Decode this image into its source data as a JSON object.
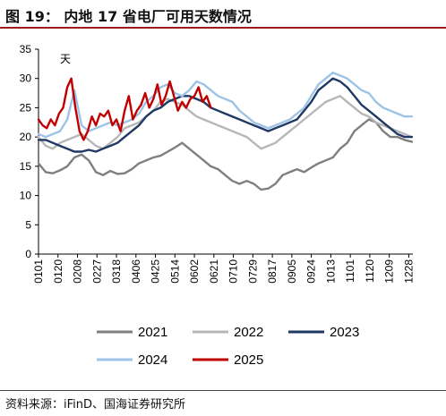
{
  "header": {
    "title": "图 19：   内地 17 省电厂可用天数情况"
  },
  "footer": {
    "source": "资料来源：iFinD、国海证券研究所"
  },
  "chart_data": {
    "type": "line",
    "unit_label": "天",
    "ylim": [
      0,
      35
    ],
    "yticks": [
      0,
      5,
      10,
      15,
      20,
      25,
      30,
      35
    ],
    "xlim": [
      0,
      365
    ],
    "x_ticks": [
      {
        "label": "0101",
        "day": 0
      },
      {
        "label": "0120",
        "day": 19
      },
      {
        "label": "0208",
        "day": 38
      },
      {
        "label": "0227",
        "day": 57
      },
      {
        "label": "0318",
        "day": 76
      },
      {
        "label": "0406",
        "day": 95
      },
      {
        "label": "0425",
        "day": 114
      },
      {
        "label": "0514",
        "day": 133
      },
      {
        "label": "0602",
        "day": 152
      },
      {
        "label": "0621",
        "day": 171
      },
      {
        "label": "0710",
        "day": 190
      },
      {
        "label": "0729",
        "day": 209
      },
      {
        "label": "0817",
        "day": 228
      },
      {
        "label": "0905",
        "day": 247
      },
      {
        "label": "0924",
        "day": 266
      },
      {
        "label": "1013",
        "day": 285
      },
      {
        "label": "1101",
        "day": 304
      },
      {
        "label": "1120",
        "day": 323
      },
      {
        "label": "1209",
        "day": 342
      },
      {
        "label": "1228",
        "day": 361
      }
    ],
    "grid": false,
    "legend_position": "bottom",
    "series": [
      {
        "name": "2021",
        "color": "#7f7f7f",
        "x": [
          0,
          7,
          14,
          21,
          28,
          35,
          42,
          49,
          56,
          63,
          70,
          77,
          84,
          91,
          98,
          105,
          112,
          119,
          126,
          133,
          140,
          147,
          154,
          161,
          168,
          175,
          182,
          189,
          196,
          203,
          210,
          217,
          224,
          231,
          238,
          245,
          252,
          259,
          266,
          273,
          280,
          287,
          294,
          301,
          308,
          315,
          322,
          329,
          336,
          343,
          350,
          357,
          364
        ],
        "y": [
          15.5,
          14.0,
          13.8,
          14.3,
          15.0,
          16.5,
          17.0,
          16.0,
          14.0,
          13.5,
          14.2,
          13.7,
          13.8,
          14.5,
          15.5,
          16.0,
          16.5,
          16.8,
          17.5,
          18.2,
          19.0,
          18.0,
          17.0,
          16.0,
          15.0,
          14.5,
          13.5,
          12.5,
          12.0,
          12.5,
          12.0,
          11.0,
          11.2,
          12.0,
          13.5,
          14.0,
          14.5,
          14.0,
          14.8,
          15.5,
          16.0,
          16.5,
          18.0,
          19.0,
          21.0,
          22.0,
          23.0,
          22.5,
          21.0,
          20.0,
          20.0,
          19.5,
          19.2
        ]
      },
      {
        "name": "2022",
        "color": "#b7b7b7",
        "x": [
          0,
          7,
          14,
          21,
          28,
          35,
          42,
          49,
          56,
          63,
          70,
          77,
          84,
          91,
          98,
          105,
          112,
          119,
          126,
          133,
          140,
          147,
          154,
          161,
          168,
          175,
          182,
          189,
          196,
          203,
          210,
          217,
          224,
          231,
          238,
          245,
          252,
          259,
          266,
          273,
          280,
          287,
          294,
          301,
          308,
          315,
          322,
          329,
          336,
          343,
          350,
          357,
          364
        ],
        "y": [
          20.0,
          18.5,
          18.0,
          19.0,
          19.5,
          20.0,
          20.5,
          19.5,
          18.5,
          18.0,
          19.0,
          20.0,
          21.5,
          22.0,
          22.5,
          23.5,
          24.5,
          26.0,
          26.5,
          26.0,
          25.5,
          24.5,
          23.5,
          23.0,
          22.5,
          22.0,
          21.5,
          21.0,
          20.5,
          20.0,
          19.0,
          18.0,
          18.5,
          19.0,
          20.0,
          21.0,
          22.0,
          23.0,
          24.0,
          25.0,
          26.0,
          26.5,
          27.0,
          26.0,
          25.0,
          24.0,
          23.5,
          22.5,
          22.0,
          21.5,
          21.0,
          20.5,
          20.0
        ]
      },
      {
        "name": "2023",
        "color": "#1f3864",
        "x": [
          0,
          7,
          14,
          21,
          28,
          35,
          42,
          49,
          56,
          63,
          70,
          77,
          84,
          91,
          98,
          105,
          112,
          119,
          126,
          133,
          140,
          147,
          154,
          161,
          168,
          175,
          182,
          189,
          196,
          203,
          210,
          217,
          224,
          231,
          238,
          245,
          252,
          259,
          266,
          273,
          280,
          287,
          294,
          301,
          308,
          315,
          322,
          329,
          336,
          343,
          350,
          357,
          364
        ],
        "y": [
          19.5,
          19.5,
          19.0,
          18.5,
          18.0,
          17.5,
          17.5,
          17.8,
          17.5,
          18.0,
          18.5,
          19.0,
          20.0,
          21.0,
          22.0,
          23.5,
          24.5,
          25.0,
          26.0,
          26.5,
          27.0,
          27.0,
          26.5,
          26.0,
          25.0,
          24.5,
          24.0,
          23.5,
          23.0,
          22.5,
          22.0,
          21.5,
          21.0,
          21.5,
          22.0,
          22.5,
          23.0,
          24.5,
          26.0,
          28.0,
          29.0,
          30.0,
          29.5,
          28.5,
          27.0,
          25.5,
          24.5,
          23.5,
          22.5,
          21.5,
          20.5,
          20.0,
          20.0
        ]
      },
      {
        "name": "2024",
        "color": "#9dc3e6",
        "x": [
          0,
          7,
          14,
          21,
          28,
          35,
          42,
          49,
          56,
          63,
          70,
          77,
          84,
          91,
          98,
          105,
          112,
          119,
          126,
          133,
          140,
          147,
          154,
          161,
          168,
          175,
          182,
          189,
          196,
          203,
          210,
          217,
          224,
          231,
          238,
          245,
          252,
          259,
          266,
          273,
          280,
          287,
          294,
          301,
          308,
          315,
          322,
          329,
          336,
          343,
          350,
          357,
          364
        ],
        "y": [
          20.5,
          20.0,
          20.5,
          21.0,
          23.0,
          28.0,
          22.0,
          21.0,
          21.5,
          22.0,
          22.5,
          22.0,
          22.5,
          23.0,
          24.0,
          26.0,
          27.0,
          28.5,
          29.0,
          27.5,
          27.0,
          28.0,
          29.5,
          29.0,
          28.0,
          27.0,
          26.5,
          26.0,
          24.5,
          23.5,
          22.5,
          22.0,
          21.5,
          22.0,
          22.5,
          23.0,
          24.0,
          25.0,
          27.0,
          29.0,
          30.0,
          31.0,
          30.5,
          30.0,
          29.0,
          28.0,
          27.5,
          26.0,
          25.0,
          24.5,
          24.0,
          23.5,
          23.5
        ]
      },
      {
        "name": "2025",
        "color": "#c00000",
        "x": [
          0,
          4,
          8,
          12,
          16,
          20,
          24,
          28,
          32,
          36,
          40,
          44,
          48,
          52,
          56,
          60,
          64,
          68,
          72,
          76,
          80,
          84,
          88,
          92,
          96,
          100,
          104,
          108,
          112,
          116,
          120,
          124,
          128,
          132,
          136,
          140,
          144,
          148,
          152,
          156,
          160,
          164,
          168
        ],
        "y": [
          23.0,
          22.0,
          21.5,
          23.0,
          22.0,
          24.0,
          25.0,
          28.5,
          30.0,
          25.0,
          21.0,
          19.5,
          21.0,
          23.5,
          22.0,
          24.0,
          23.5,
          24.5,
          22.0,
          23.0,
          21.0,
          24.5,
          27.0,
          23.0,
          24.5,
          25.5,
          27.5,
          25.0,
          26.5,
          29.0,
          25.5,
          27.0,
          29.5,
          27.0,
          24.5,
          26.0,
          25.0,
          26.5,
          27.0,
          28.5,
          26.0,
          27.0,
          25.0
        ]
      }
    ]
  }
}
